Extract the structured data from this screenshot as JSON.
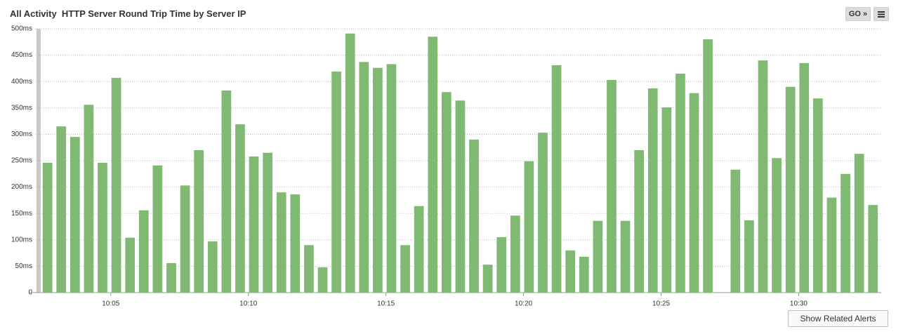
{
  "chart_data": {
    "type": "bar",
    "title": "All Activity  HTTP Server Round Trip Time by Server IP",
    "x": [
      2.7,
      3.2,
      3.7,
      4.2,
      4.7,
      5.2,
      5.7,
      6.2,
      6.7,
      7.2,
      7.7,
      8.2,
      8.7,
      9.2,
      9.7,
      10.2,
      10.7,
      11.2,
      11.7,
      12.2,
      12.7,
      13.2,
      13.7,
      14.2,
      14.7,
      15.2,
      15.7,
      16.2,
      16.7,
      17.2,
      17.7,
      18.2,
      18.7,
      19.2,
      19.7,
      20.2,
      20.7,
      21.2,
      21.7,
      22.2,
      22.7,
      23.2,
      23.7,
      24.2,
      24.7,
      25.2,
      25.7,
      26.2,
      26.7,
      27.2,
      27.7,
      28.2,
      28.7,
      29.2,
      29.7,
      30.2,
      30.7,
      31.2,
      31.7,
      32.2,
      32.7
    ],
    "values": [
      246,
      315,
      295,
      356,
      246,
      407,
      104,
      156,
      241,
      56,
      203,
      270,
      97,
      383,
      319,
      258,
      265,
      190,
      186,
      90,
      48,
      419,
      491,
      437,
      426,
      433,
      90,
      164,
      485,
      380,
      364,
      290,
      53,
      105,
      146,
      249,
      303,
      431,
      80,
      68,
      136,
      403,
      136,
      270,
      387,
      351,
      415,
      378,
      480,
      null,
      233,
      137,
      440,
      255,
      390,
      435,
      368,
      180,
      225,
      263,
      166
    ],
    "color": "#80ba72",
    "xlim": [
      2.25,
      33.0
    ],
    "xticks": [
      {
        "value": 5,
        "label": "10:05"
      },
      {
        "value": 10,
        "label": "10:10"
      },
      {
        "value": 15,
        "label": "10:15"
      },
      {
        "value": 20,
        "label": "10:20"
      },
      {
        "value": 25,
        "label": "10:25"
      },
      {
        "value": 30,
        "label": "10:30"
      }
    ],
    "ylim": [
      0,
      500
    ],
    "yticks": [
      0,
      {
        "value": 50,
        "label": "50ms"
      },
      {
        "value": 100,
        "label": "100ms"
      },
      {
        "value": 150,
        "label": "150ms"
      },
      {
        "value": 200,
        "label": "200ms"
      },
      {
        "value": 250,
        "label": "250ms"
      },
      {
        "value": 300,
        "label": "300ms"
      },
      {
        "value": 350,
        "label": "350ms"
      },
      {
        "value": 400,
        "label": "400ms"
      },
      {
        "value": 450,
        "label": "450ms"
      },
      {
        "value": 500,
        "label": "500ms"
      }
    ],
    "grid": true
  },
  "ui": {
    "go_button": "GO »",
    "alerts_button": "Show Related Alerts"
  }
}
